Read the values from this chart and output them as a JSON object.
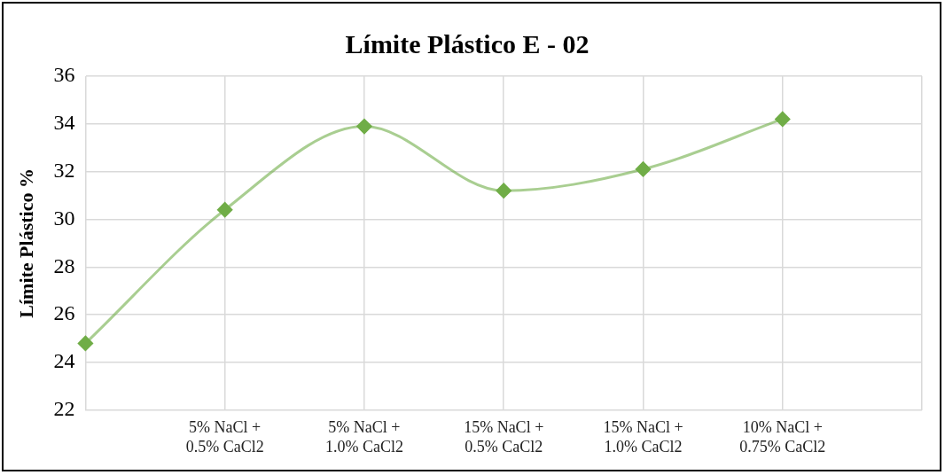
{
  "chart_data": {
    "type": "line",
    "title": "Límite Plástico E - 02",
    "ylabel": "Límite Plástico %",
    "categories": [
      null,
      "5% NaCl + 0.5% CaCl2",
      "5% NaCl + 1.0% CaCl2",
      "15% NaCl + 0.5% CaCl2",
      "15% NaCl + 1.0% CaCl2",
      "10% NaCl + 0.75% CaCl2",
      null
    ],
    "series": [
      {
        "color": "#70ad47",
        "values": [
          24.8,
          30.4,
          33.9,
          31.2,
          32.1,
          34.2,
          null
        ]
      }
    ],
    "ylim": [
      22,
      36
    ],
    "yticks": [
      22,
      24,
      26,
      28,
      30,
      32,
      34,
      36
    ],
    "grid": true,
    "legend": false,
    "marker": "diamond",
    "line_style": "solid"
  }
}
